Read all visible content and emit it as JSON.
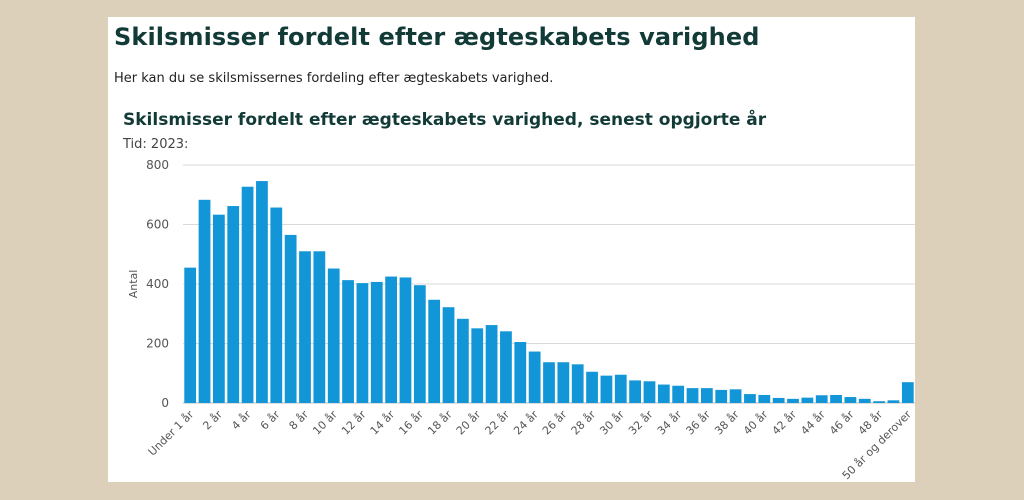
{
  "page": {
    "title": "Skilsmisser fordelt efter ægteskabets varighed",
    "intro": "Her kan du se skilsmissernes fordeling efter ægteskabets varighed."
  },
  "chart_header": {
    "title": "Skilsmisser fordelt efter ægteskabets varighed, senest opgjorte år",
    "period": "Tid: 2023:"
  },
  "colors": {
    "bar": "#1396d8",
    "grid": "#d9d9d9",
    "title": "#123a36",
    "background": "#ddd0bb"
  },
  "chart_data": {
    "type": "bar",
    "ylabel": "Antal",
    "xlabel": "",
    "ylim": [
      0,
      800
    ],
    "yticks": [
      0,
      200,
      400,
      600,
      800
    ],
    "grid": true,
    "categories": [
      "Under 1 år",
      "1 år",
      "2 år",
      "3 år",
      "4 år",
      "5 år",
      "6 år",
      "7 år",
      "8 år",
      "9 år",
      "10 år",
      "11 år",
      "12 år",
      "13 år",
      "14 år",
      "15 år",
      "16 år",
      "17 år",
      "18 år",
      "19 år",
      "20 år",
      "21 år",
      "22 år",
      "23 år",
      "24 år",
      "25 år",
      "26 år",
      "27 år",
      "28 år",
      "29 år",
      "30 år",
      "31 år",
      "32 år",
      "33 år",
      "34 år",
      "35 år",
      "36 år",
      "37 år",
      "38 år",
      "39 år",
      "40 år",
      "41 år",
      "42 år",
      "43 år",
      "44 år",
      "45 år",
      "46 år",
      "47 år",
      "48 år",
      "49 år",
      "50 år og derover"
    ],
    "x_tick_labels_shown": [
      "Under 1 år",
      "2 år",
      "4 år",
      "6 år",
      "8 år",
      "10 år",
      "12 år",
      "14 år",
      "16 år",
      "18 år",
      "20 år",
      "22 år",
      "24 år",
      "26 år",
      "28 år",
      "30 år",
      "32 år",
      "34 år",
      "36 år",
      "38 år",
      "40 år",
      "42 år",
      "44 år",
      "46 år",
      "48 år",
      "50 år og derover"
    ],
    "values": [
      455,
      683,
      633,
      662,
      727,
      746,
      657,
      565,
      510,
      510,
      452,
      413,
      403,
      407,
      425,
      422,
      396,
      347,
      322,
      283,
      251,
      262,
      241,
      205,
      173,
      137,
      137,
      130,
      105,
      92,
      95,
      76,
      73,
      62,
      58,
      50,
      50,
      44,
      46,
      30,
      27,
      17,
      14,
      18,
      26,
      27,
      20,
      14,
      6,
      9,
      70
    ]
  }
}
